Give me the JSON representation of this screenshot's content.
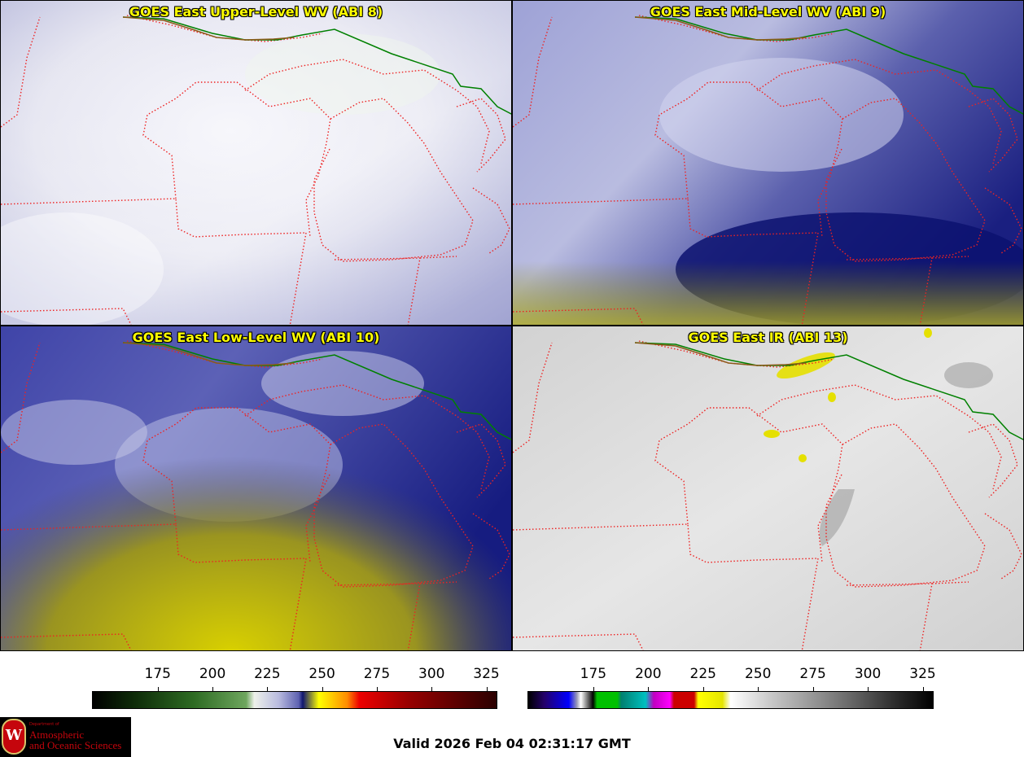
{
  "panels": [
    {
      "title": "GOES East Upper-Level WV (ABI 8)"
    },
    {
      "title": "GOES East Mid-Level WV (ABI 9)"
    },
    {
      "title": "GOES East Low-Level WV (ABI 10)"
    },
    {
      "title": "GOES East IR (ABI 13)"
    }
  ],
  "colorbars": {
    "left_ticks": [
      "175",
      "200",
      "225",
      "250",
      "275",
      "300",
      "325"
    ],
    "right_ticks": [
      "175",
      "200",
      "225",
      "250",
      "275",
      "300",
      "325"
    ],
    "range": [
      145,
      330
    ]
  },
  "valid_time": "Valid 2026 Feb 04 02:31:17 GMT",
  "logo": {
    "dept": "Department of",
    "line1": "Atmospheric",
    "line2": "and Oceanic Sciences",
    "seal": "W"
  },
  "colors": {
    "state_border": "#ee2222",
    "country_border": "#008000"
  }
}
